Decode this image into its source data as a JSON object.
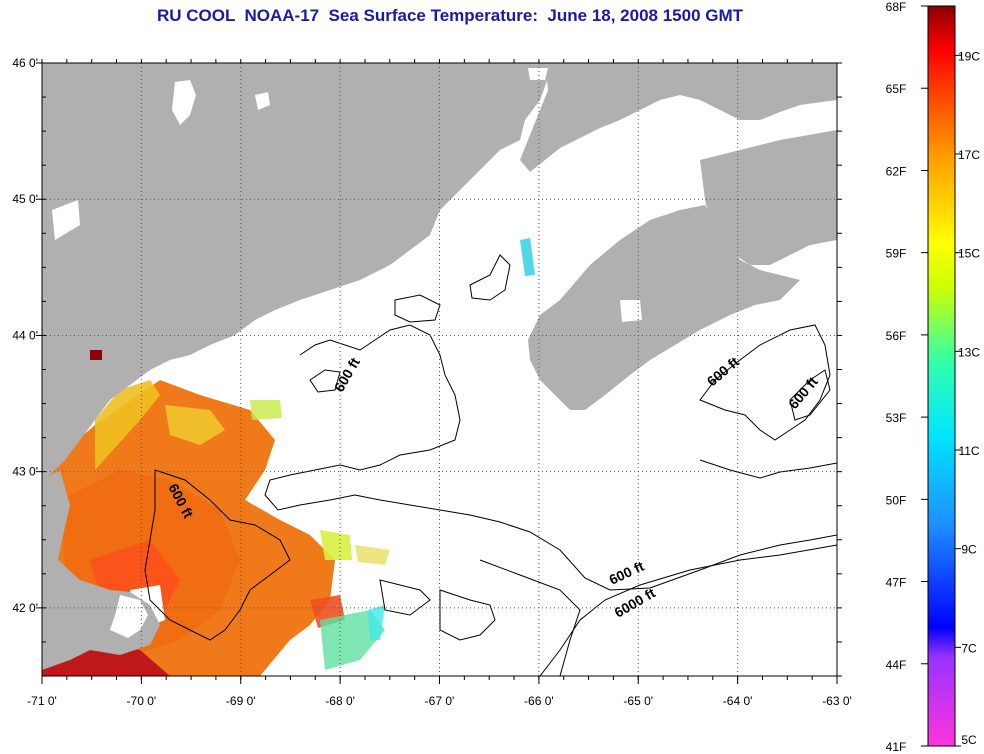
{
  "title": "RU COOL  NOAA-17  Sea Surface Temperature:  June 18, 2008 1500 GMT",
  "map": {
    "lon_range": [
      -71,
      -63
    ],
    "lat_range": [
      41.5,
      46
    ],
    "lon_ticks": [
      "-71 0'",
      "-70 0'",
      "-69 0'",
      "-68 0'",
      "-67 0'",
      "-66 0'",
      "-65 0'",
      "-64 0'",
      "-63 0'"
    ],
    "lat_ticks": [
      "46 0'",
      "45 0'",
      "44 0'",
      "43 0'",
      "42 0'"
    ],
    "grid": "dotted",
    "land_color": "#b0b0b0",
    "contour_labels": [
      "600 ft",
      "600 ft",
      "600 ft",
      "600 ft",
      "600 ft",
      "6000 ft"
    ]
  },
  "colorbar": {
    "range_F": [
      41,
      68
    ],
    "range_C": [
      5,
      20
    ],
    "f_labels": [
      "68F",
      "65F",
      "62F",
      "59F",
      "56F",
      "53F",
      "50F",
      "47F",
      "44F",
      "41F"
    ],
    "c_labels": [
      "19C",
      "17C",
      "15C",
      "13C",
      "11C",
      "9C",
      "7C",
      "5C"
    ],
    "placement": "right"
  }
}
